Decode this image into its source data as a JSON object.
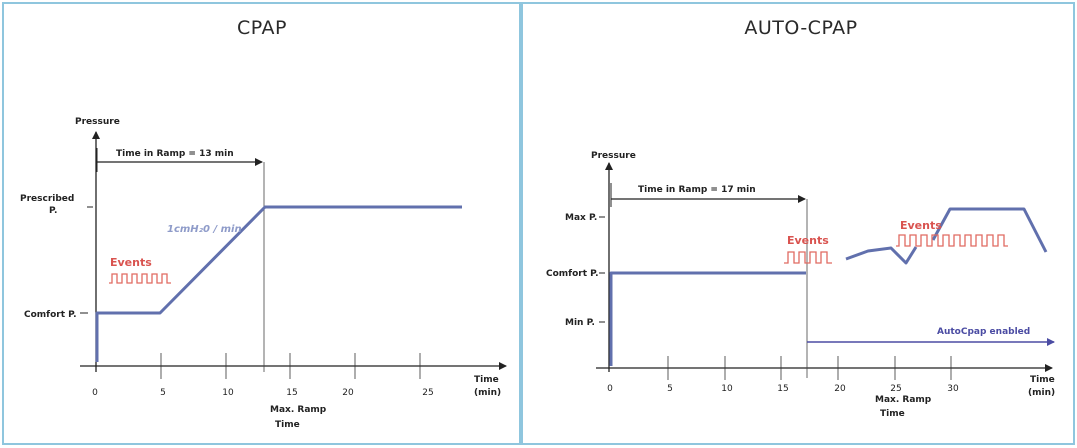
{
  "colors": {
    "panel_border": "#8fc6de",
    "pressure_line": "#6170ad",
    "event_wave": "#e06a62",
    "axis": "#222222",
    "auto_arrow": "#4b4ca3"
  },
  "panels": {
    "cpap": {
      "title": "CPAP",
      "y_axis_label": "Pressure",
      "ramp_label": "Time in Ramp = 13 min",
      "prescribed_label_1": "Prescribed",
      "prescribed_label_2": "P.",
      "comfort_label": "Comfort P.",
      "events_label": "Events",
      "slope_label": "1cmH₂0 / min",
      "x_axis_label_1": "Time",
      "x_axis_label_2": "(min)",
      "x_ticks": [
        "0",
        "5",
        "10",
        "15",
        "20",
        "25"
      ],
      "max_ramp_label_1": "Max. Ramp",
      "max_ramp_label_2": "Time"
    },
    "auto": {
      "title": "AUTO-CPAP",
      "y_axis_label": "Pressure",
      "ramp_label": "Time in Ramp = 17 min",
      "max_label": "Max P.",
      "comfort_label": "Comfort P.",
      "min_label": "Min P.",
      "events_label_1": "Events",
      "events_label_2": "Events",
      "autocpap_label": "AutoCpap enabled",
      "x_axis_label_1": "Time",
      "x_axis_label_2": "(min)",
      "x_ticks": [
        "0",
        "5",
        "10",
        "15",
        "20",
        "25",
        "30"
      ],
      "max_ramp_label_1": "Max. Ramp",
      "max_ramp_label_2": "Time"
    }
  }
}
